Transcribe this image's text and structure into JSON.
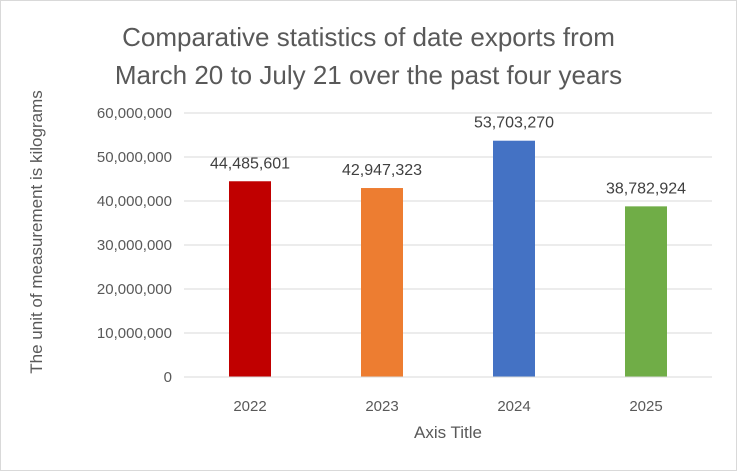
{
  "chart_data": {
    "type": "bar",
    "title_lines": [
      "Comparative statistics of date exports from",
      "March 20 to July 21 over the past four years"
    ],
    "xlabel": "Axis Title",
    "ylabel": "The unit of measurement is kilograms",
    "categories": [
      "2022",
      "2023",
      "2024",
      "2025"
    ],
    "values": [
      44485601,
      42947323,
      53703270,
      38782924
    ],
    "data_labels": [
      "44,485,601",
      "42,947,323",
      "53,703,270",
      "38,782,924"
    ],
    "colors": [
      "#c00000",
      "#ed7d31",
      "#4472c4",
      "#70ad47"
    ],
    "ylim": [
      0,
      60000000
    ],
    "yticks": [
      0,
      10000000,
      20000000,
      30000000,
      40000000,
      50000000,
      60000000
    ],
    "ytick_labels": [
      "0",
      "10,000,000",
      "20,000,000",
      "30,000,000",
      "40,000,000",
      "50,000,000",
      "60,000,000"
    ],
    "grid": true,
    "gridline_color": "#d9d9d9",
    "legend": "none"
  }
}
